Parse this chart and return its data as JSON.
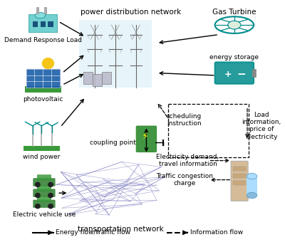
{
  "background_color": "#ffffff",
  "figsize": [
    4.0,
    3.4
  ],
  "dpi": 100,
  "labels": {
    "power_dist_network": "power distribution network",
    "gas_turbine": "Gas Turbine",
    "demand_response": "Demand Response Load",
    "photovoltaic": "photovoltaic",
    "wind_power": "wind power",
    "coupling_point": "coupling point",
    "energy_storage": "energy storage",
    "scheduling_instruction": "scheduling\ninstruction",
    "load_info": "Load\ninformation,\nprice of\nelectricity",
    "electricity_demand": "Electricity demand,\ntravel information",
    "traffic_congestion": "Traffic congestion\ncharge",
    "electric_vehicle": "Electric vehicle use",
    "transport_network": "transportation network",
    "legend_solid": "Energy flow/traffic flow",
    "legend_dashed": "Information flow"
  },
  "teal": "#008B8B",
  "green": "#2E7D2E",
  "blue": "#1a5fa8",
  "gray": "#888888",
  "tan": "#D2B48C",
  "lightblue": "#ADD8E6"
}
